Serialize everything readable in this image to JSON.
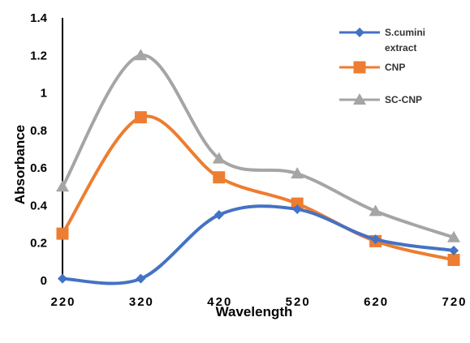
{
  "chart_data": {
    "type": "line",
    "title": "",
    "xlabel": "Wavelength",
    "ylabel": "Absorbance",
    "x": [
      220,
      320,
      420,
      520,
      620,
      720
    ],
    "xlim": [
      220,
      720
    ],
    "ylim": [
      0,
      1.4
    ],
    "yticks": [
      "0",
      "0.2",
      "0.4",
      "0.6",
      "0.8",
      "1",
      "1.2",
      "1.4"
    ],
    "xticks": [
      "220",
      "320",
      "420",
      "520",
      "620",
      "720"
    ],
    "grid": false,
    "legend_position": "top-right",
    "smooth": true,
    "series": [
      {
        "name_lines": [
          "S.cumini",
          "extract"
        ],
        "marker": "diamond",
        "color": "#4472C4",
        "values": [
          0.01,
          0.01,
          0.35,
          0.38,
          0.22,
          0.16
        ]
      },
      {
        "name_lines": [
          "CNP"
        ],
        "marker": "square",
        "color": "#ED7D31",
        "values": [
          0.25,
          0.87,
          0.55,
          0.41,
          0.21,
          0.11
        ]
      },
      {
        "name_lines": [
          "SC-CNP"
        ],
        "marker": "triangle",
        "color": "#A5A5A5",
        "values": [
          0.5,
          1.2,
          0.65,
          0.57,
          0.37,
          0.23
        ]
      }
    ]
  }
}
